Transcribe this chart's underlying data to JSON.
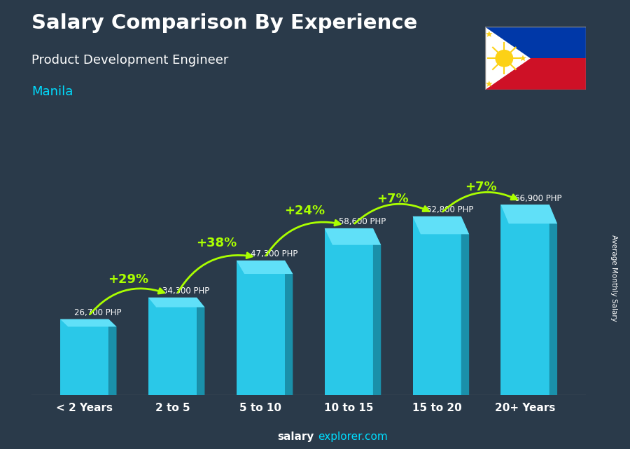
{
  "title": "Salary Comparison By Experience",
  "subtitle": "Product Development Engineer",
  "city": "Manila",
  "categories": [
    "< 2 Years",
    "2 to 5",
    "5 to 10",
    "10 to 15",
    "15 to 20",
    "20+ Years"
  ],
  "values": [
    26700,
    34300,
    47300,
    58600,
    62800,
    66900
  ],
  "salary_labels": [
    "26,700 PHP",
    "34,300 PHP",
    "47,300 PHP",
    "58,600 PHP",
    "62,800 PHP",
    "66,900 PHP"
  ],
  "pct_labels": [
    "+29%",
    "+38%",
    "+24%",
    "+7%",
    "+7%"
  ],
  "bar_front_color": "#2ac8e8",
  "bar_side_color": "#1a90aa",
  "bar_top_color": "#60e0f8",
  "title_color": "#ffffff",
  "subtitle_color": "#ffffff",
  "city_color": "#00ddff",
  "salary_label_color": "#ffffff",
  "pct_color": "#aaff00",
  "bg_color": "#2a3a4a",
  "footer_salary_color": "#ffffff",
  "footer_explorer_color": "#00ddff",
  "ylabel_text": "Average Monthly Salary",
  "ylim": [
    0,
    82000
  ],
  "flag_blue": "#0038a8",
  "flag_red": "#ce1126",
  "flag_yellow": "#fcd116"
}
